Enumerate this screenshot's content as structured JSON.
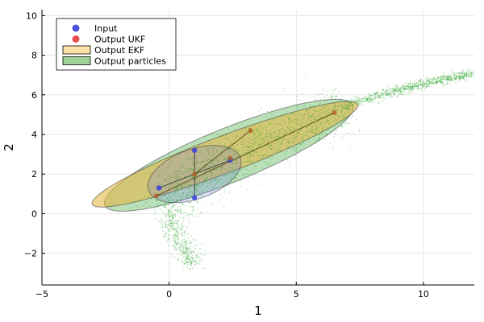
{
  "chart_data": {
    "type": "scatter",
    "title": "",
    "xlabel": "1",
    "ylabel": "2",
    "xlim": [
      -5,
      12
    ],
    "ylim": [
      -3.6,
      10.3
    ],
    "x_ticks": [
      -5,
      0,
      5,
      10
    ],
    "y_ticks": [
      -2,
      0,
      2,
      4,
      6,
      8,
      10
    ],
    "grid": true,
    "legend_position": "top-left",
    "legend": [
      {
        "name": "Input",
        "kind": "marker",
        "color": "#3a3fd8"
      },
      {
        "name": "Output UKF",
        "kind": "marker",
        "color": "#e83b3b"
      },
      {
        "name": "Output EKF",
        "kind": "patch",
        "color": "#ffe2a8"
      },
      {
        "name": "Output particles",
        "kind": "patch",
        "color": "#9fd49a"
      }
    ],
    "colors": {
      "input": "#3a3fd8",
      "input_fill": "#6b70e6",
      "ukf": "#b05a1e",
      "ekf_fill": "#e6b23a",
      "particles": "#1fa01f",
      "particles_fill": "#3aa63a",
      "edge": "#333333"
    },
    "ellipses": [
      {
        "name": "Input",
        "center": [
          1.0,
          2.0
        ],
        "rx": 2.0,
        "ry": 1.2,
        "angle_deg": 30,
        "fill": "#6b70e6",
        "opacity": 0.22
      },
      {
        "name": "Output EKF",
        "center": [
          2.2,
          3.0
        ],
        "rx": 5.8,
        "ry": 0.9,
        "angle_deg": 26,
        "fill": "#e6b23a",
        "opacity": 0.55
      },
      {
        "name": "Output particles",
        "center": [
          2.35,
          2.95
        ],
        "rx": 5.5,
        "ry": 1.3,
        "angle_deg": 28,
        "fill": "#3aa63a",
        "opacity": 0.35
      },
      {
        "name": "Output UKF",
        "center": [
          2.4,
          2.8
        ],
        "rx": 4.0,
        "ry": 0.3,
        "angle_deg": 28,
        "fill": "#b05a1e",
        "opacity": 0.0
      }
    ],
    "input_points": [
      {
        "x": 1.0,
        "y": 3.2
      },
      {
        "x": 1.0,
        "y": 0.8
      },
      {
        "x": -0.4,
        "y": 1.3
      },
      {
        "x": 2.4,
        "y": 2.7
      }
    ],
    "input_connections": [
      [
        0,
        1
      ],
      [
        2,
        3
      ]
    ],
    "ukf_points": [
      {
        "x": 3.2,
        "y": 4.2
      },
      {
        "x": 1.0,
        "y": 2.0
      },
      {
        "x": -0.5,
        "y": 0.9
      },
      {
        "x": 6.5,
        "y": 5.1
      },
      {
        "x": 2.4,
        "y": 2.8
      }
    ],
    "ukf_connections": [
      [
        2,
        3
      ],
      [
        1,
        0
      ]
    ],
    "particle_cloud": {
      "curve": [
        [
          1.0,
          -2.6
        ],
        [
          0.6,
          -1.8
        ],
        [
          0.2,
          -0.8
        ],
        [
          0.0,
          0.0
        ],
        [
          0.2,
          0.8
        ],
        [
          0.7,
          1.5
        ],
        [
          1.5,
          2.2
        ],
        [
          2.5,
          2.8
        ],
        [
          3.8,
          3.6
        ],
        [
          5.5,
          4.6
        ],
        [
          7.5,
          5.7
        ],
        [
          9.5,
          6.4
        ],
        [
          12.0,
          7.1
        ]
      ],
      "count": 2600
    }
  }
}
